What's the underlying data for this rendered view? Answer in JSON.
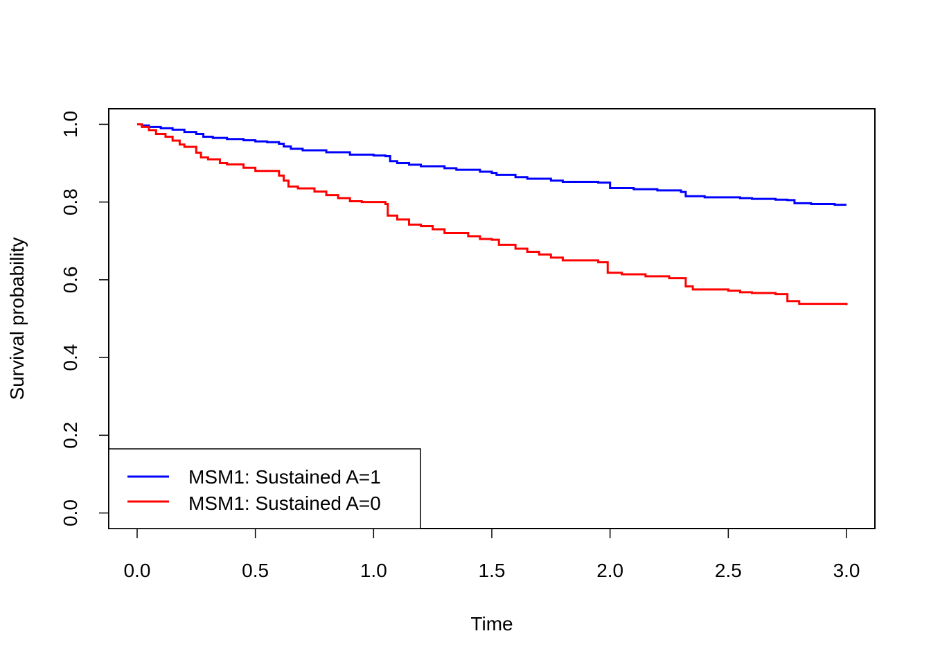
{
  "chart_data": {
    "type": "line",
    "step": true,
    "title": "",
    "xlabel": "Time",
    "ylabel": "Survival probability",
    "xlim": [
      -0.12,
      3.12
    ],
    "ylim": [
      -0.04,
      1.04
    ],
    "xticks": [
      0.0,
      0.5,
      1.0,
      1.5,
      2.0,
      2.5,
      3.0
    ],
    "xtick_labels": [
      "0.0",
      "0.5",
      "1.0",
      "1.5",
      "2.0",
      "2.5",
      "3.0"
    ],
    "yticks": [
      0.0,
      0.2,
      0.4,
      0.6,
      0.8,
      1.0
    ],
    "ytick_labels": [
      "0.0",
      "0.2",
      "0.4",
      "0.6",
      "0.8",
      "1.0"
    ],
    "grid": false,
    "legend_position": "bottom-left",
    "series": [
      {
        "name": "MSM1: Sustained A=1",
        "color": "#0000ff",
        "x": [
          0.0,
          0.02,
          0.05,
          0.1,
          0.15,
          0.2,
          0.25,
          0.28,
          0.32,
          0.38,
          0.45,
          0.5,
          0.55,
          0.6,
          0.62,
          0.65,
          0.7,
          0.8,
          0.9,
          1.0,
          1.05,
          1.07,
          1.1,
          1.15,
          1.2,
          1.3,
          1.35,
          1.45,
          1.5,
          1.52,
          1.6,
          1.65,
          1.75,
          1.8,
          1.95,
          2.0,
          2.1,
          2.2,
          2.3,
          2.32,
          2.4,
          2.55,
          2.6,
          2.7,
          2.75,
          2.78,
          2.85,
          2.95,
          3.0
        ],
        "y": [
          1.0,
          0.997,
          0.993,
          0.99,
          0.986,
          0.98,
          0.975,
          0.968,
          0.965,
          0.962,
          0.959,
          0.956,
          0.954,
          0.95,
          0.943,
          0.937,
          0.933,
          0.928,
          0.922,
          0.92,
          0.918,
          0.905,
          0.9,
          0.896,
          0.892,
          0.887,
          0.883,
          0.878,
          0.875,
          0.87,
          0.864,
          0.86,
          0.855,
          0.852,
          0.85,
          0.836,
          0.833,
          0.83,
          0.826,
          0.815,
          0.812,
          0.81,
          0.808,
          0.806,
          0.805,
          0.797,
          0.795,
          0.793,
          0.793
        ]
      },
      {
        "name": "MSM1: Sustained A=0",
        "color": "#ff0000",
        "x": [
          0.0,
          0.02,
          0.05,
          0.08,
          0.12,
          0.15,
          0.18,
          0.2,
          0.25,
          0.27,
          0.3,
          0.35,
          0.38,
          0.45,
          0.5,
          0.6,
          0.62,
          0.64,
          0.68,
          0.75,
          0.8,
          0.85,
          0.9,
          0.95,
          1.05,
          1.06,
          1.1,
          1.15,
          1.2,
          1.25,
          1.3,
          1.4,
          1.45,
          1.5,
          1.53,
          1.6,
          1.65,
          1.7,
          1.75,
          1.8,
          1.95,
          1.99,
          2.05,
          2.15,
          2.25,
          2.32,
          2.35,
          2.5,
          2.55,
          2.6,
          2.7,
          2.75,
          2.8,
          3.0
        ],
        "y": [
          1.0,
          0.993,
          0.985,
          0.975,
          0.968,
          0.958,
          0.948,
          0.942,
          0.927,
          0.915,
          0.91,
          0.9,
          0.897,
          0.888,
          0.88,
          0.868,
          0.855,
          0.84,
          0.835,
          0.827,
          0.818,
          0.81,
          0.802,
          0.8,
          0.795,
          0.765,
          0.755,
          0.742,
          0.738,
          0.73,
          0.72,
          0.712,
          0.705,
          0.703,
          0.69,
          0.68,
          0.672,
          0.665,
          0.657,
          0.65,
          0.645,
          0.618,
          0.614,
          0.609,
          0.604,
          0.583,
          0.575,
          0.572,
          0.568,
          0.566,
          0.563,
          0.545,
          0.538,
          0.535
        ]
      }
    ]
  }
}
